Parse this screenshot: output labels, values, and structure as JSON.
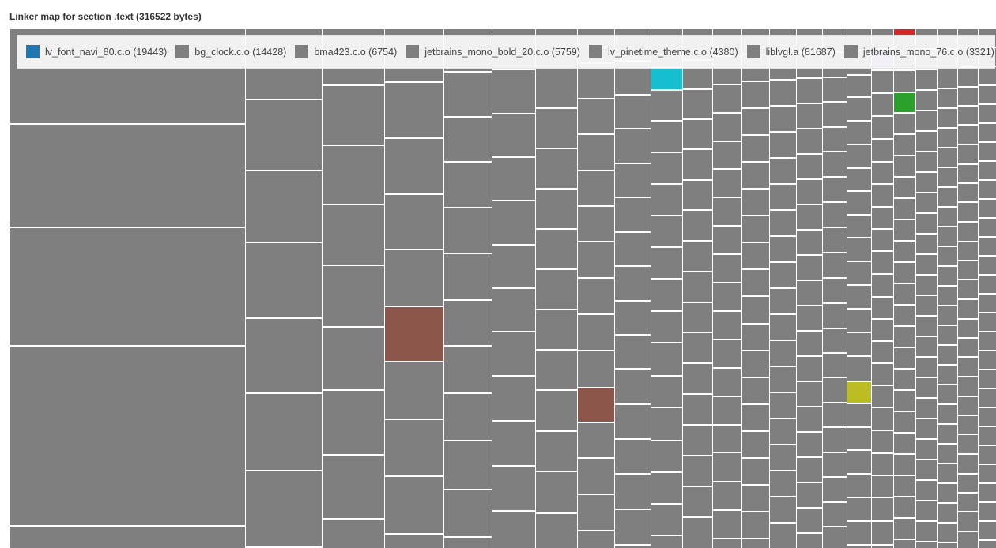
{
  "title": "Linker map for section .text (316522 bytes)",
  "chart_data": {
    "type": "treemap",
    "title": "Linker map for section .text (316522 bytes)",
    "default_color": "#7f7f7f",
    "legend": [
      {
        "label": "lv_font_navi_80.c.o (19443)",
        "name": "lv_font_navi_80.c.o",
        "bytes": 19443,
        "color": "#1f77b4"
      },
      {
        "label": "bg_clock.c.o (14428)",
        "name": "bg_clock.c.o",
        "bytes": 14428,
        "color": "#7f7f7f"
      },
      {
        "label": "bma423.c.o (6754)",
        "name": "bma423.c.o",
        "bytes": 6754,
        "color": "#7f7f7f"
      },
      {
        "label": "jetbrains_mono_bold_20.c.o (5759)",
        "name": "jetbrains_mono_bold_20.c.o",
        "bytes": 5759,
        "color": "#7f7f7f"
      },
      {
        "label": "lv_pinetime_theme.c.o (4380)",
        "name": "lv_pinetime_theme.c.o",
        "bytes": 4380,
        "color": "#7f7f7f"
      },
      {
        "label": "liblvgl.a (81687)",
        "name": "liblvgl.a",
        "bytes": 81687,
        "color": "#7f7f7f"
      },
      {
        "label": "jetbrains_mono_76.c.o (3321)",
        "name": "jetbrains_mono_76.c.o",
        "bytes": 3321,
        "color": "#7f7f7f"
      }
    ],
    "highlight_colors": [
      "#8c564b",
      "#17becf",
      "#bcbd22",
      "#2ca02c",
      "#d62728",
      "#9467bd"
    ]
  }
}
